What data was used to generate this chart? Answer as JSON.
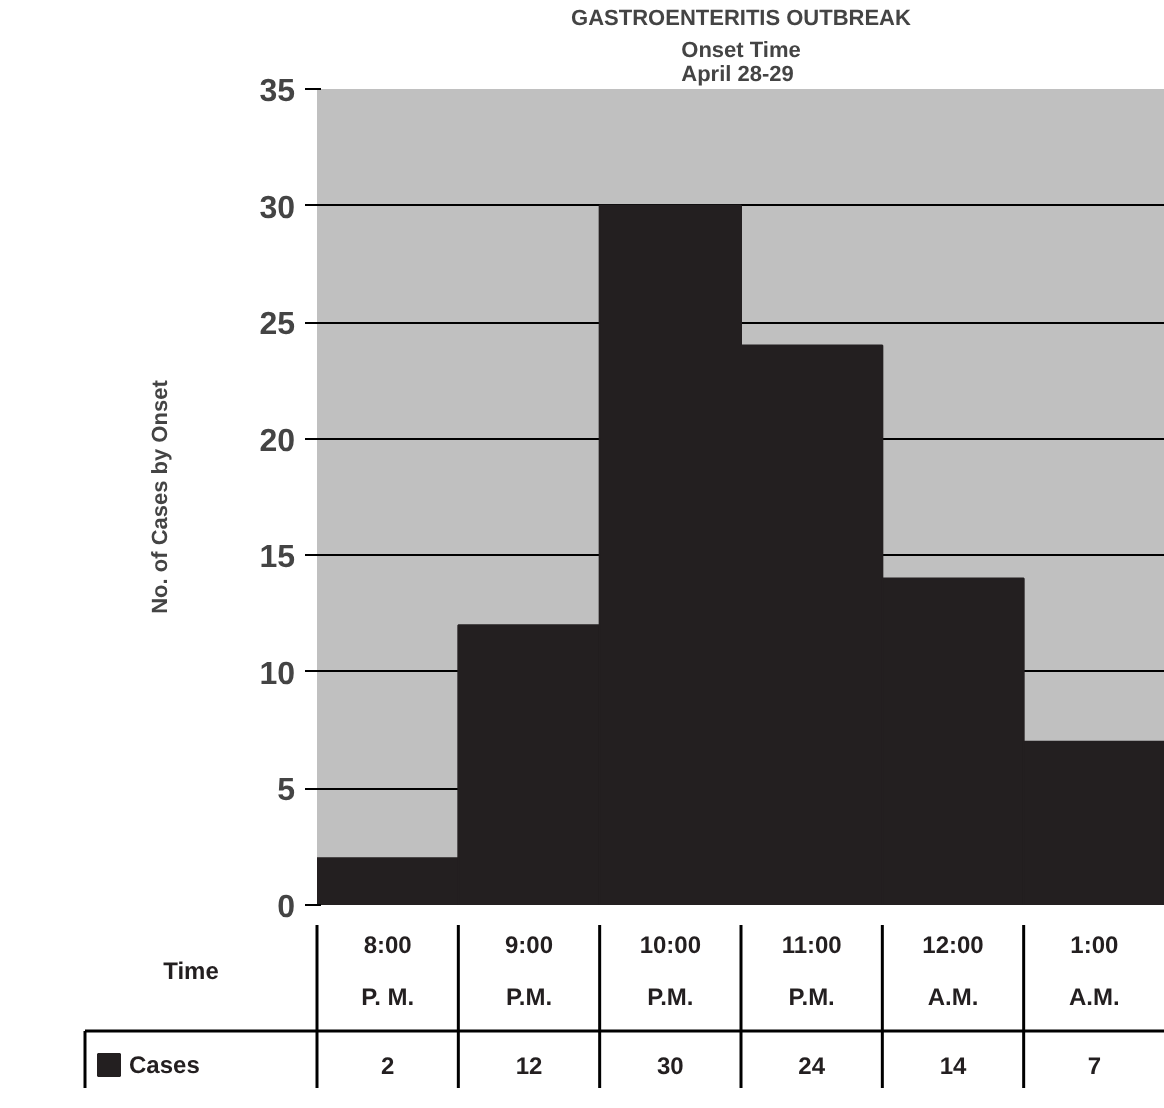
{
  "chart_data": {
    "type": "bar",
    "title": "GASTROENTERITIS OUTBREAK",
    "subtitle": "Onset Time\nApril 28-29",
    "xlabel": "Time",
    "ylabel": "No. of Cases by Onset",
    "categories": [
      "8:00\nP. M.",
      "9:00\nP.M.",
      "10:00\nP.M.",
      "11:00\nP.M.",
      "12:00\nA.M.",
      "1:00\nA.M."
    ],
    "series": [
      {
        "name": "Cases",
        "color": "#231f20",
        "values": [
          2,
          12,
          30,
          24,
          14,
          7
        ]
      }
    ],
    "ylim": [
      0,
      35
    ],
    "yticks": [
      0,
      5,
      10,
      15,
      20,
      25,
      30,
      35
    ],
    "grid": "y",
    "data_labels": true,
    "legend": "bottom left"
  }
}
